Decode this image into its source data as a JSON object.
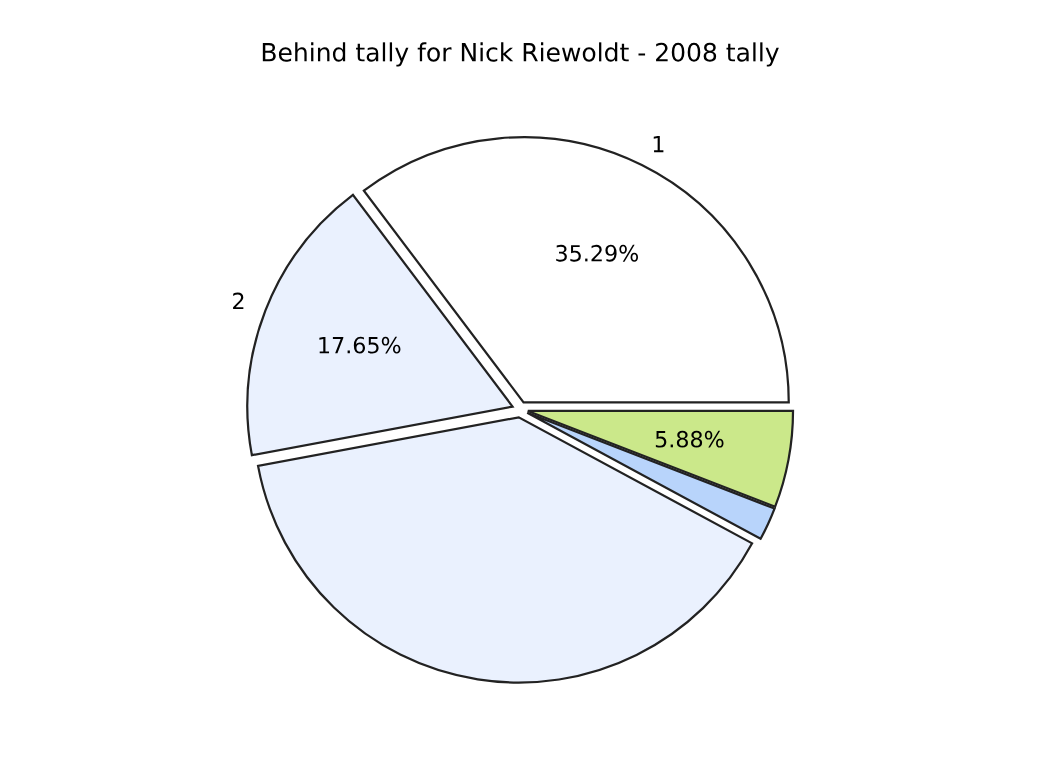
{
  "chart_data": {
    "type": "pie",
    "title": "Behind tally for Nick Riewoldt - 2008 tally",
    "categories": [
      "1",
      "2",
      null,
      null,
      null
    ],
    "values": [
      35.29,
      17.65,
      39.2,
      2.0,
      5.88
    ],
    "value_labels": [
      "35.29%",
      "17.65%",
      null,
      null,
      "5.88%"
    ],
    "colors": [
      "#ffffff",
      "#eaf1fe",
      "#eaf1fe",
      "#b8d4fb",
      "#cbe88a"
    ],
    "legend": false
  }
}
